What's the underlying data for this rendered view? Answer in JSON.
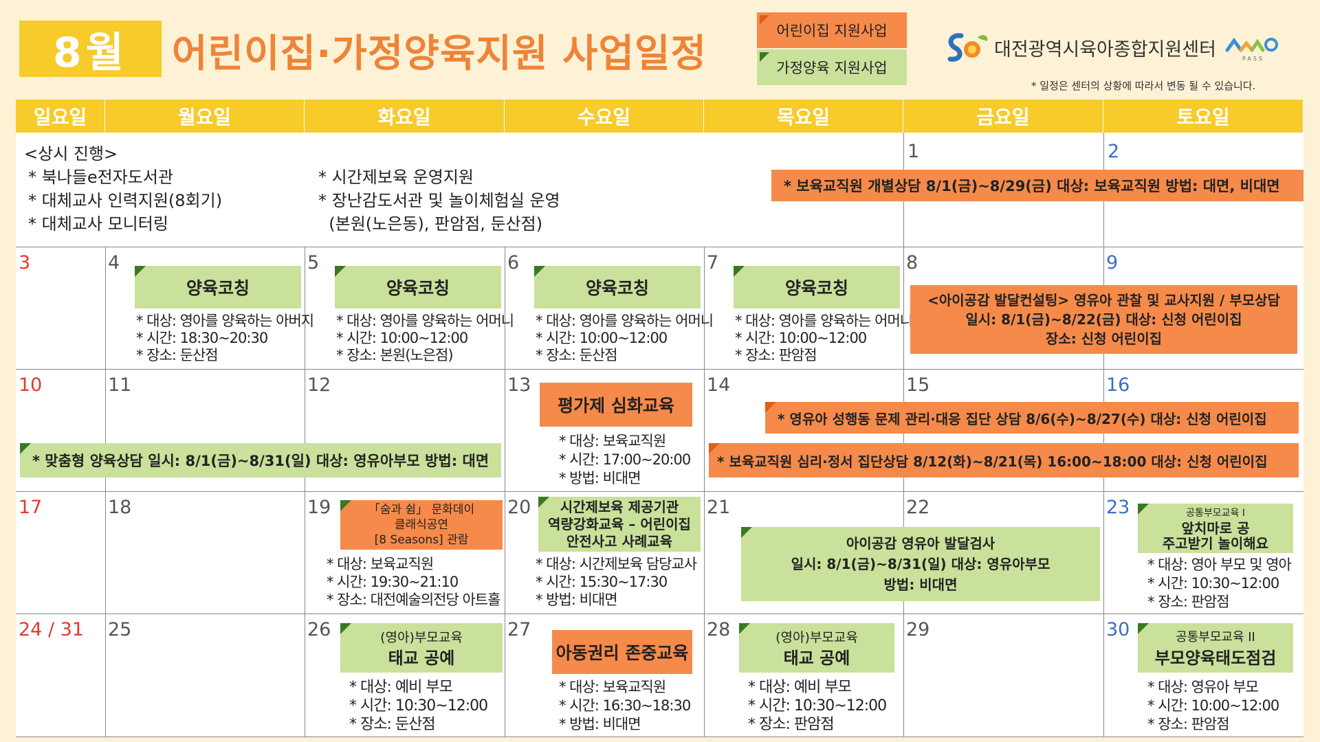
{
  "header": {
    "month": "8월",
    "title": "어린이집·가정양육지원 사업일정",
    "legend": {
      "daycare": "어린이집 지원사업",
      "home": "가정양육 지원사업"
    },
    "center_name": "대전광역시육아종합지원센터",
    "pass_label": "PASS",
    "note": "* 일정은 센터의 상황에 따라서 변동 될 수 있습니다."
  },
  "colors": {
    "accent_yellow": "#f6cb2a",
    "title_orange": "#ee8437",
    "daycare_orange": "#f58a4a",
    "home_green": "#c9e19b",
    "sunday_red": "#e33a2e",
    "saturday_blue": "#3a6fc4"
  },
  "weekdays": [
    "일요일",
    "월요일",
    "화요일",
    "수요일",
    "목요일",
    "금요일",
    "토요일"
  ],
  "always": {
    "heading": "<상시 진행>",
    "left": [
      "* 북나들e전자도서관",
      "* 대체교사 인력지원(8회기)",
      "* 대체교사 모니터링"
    ],
    "right": [
      "* 시간제보육 운영지원",
      "* 장난감도서관 및 놀이체험실 운영",
      "  (본원(노은동), 판암점, 둔산점)"
    ]
  },
  "days": {
    "d1": "1",
    "d2": "2",
    "d3": "3",
    "d4": "4",
    "d5": "5",
    "d6": "6",
    "d7": "7",
    "d8": "8",
    "d9": "9",
    "d10": "10",
    "d11": "11",
    "d12": "12",
    "d13": "13",
    "d14": "14",
    "d15": "15",
    "d16": "16",
    "d17": "17",
    "d18": "18",
    "d19": "19",
    "d20": "20",
    "d21": "21",
    "d22": "22",
    "d23": "23",
    "d24": "24 / 31",
    "d25": "25",
    "d26": "26",
    "d27": "27",
    "d28": "28",
    "d29": "29",
    "d30": "30"
  },
  "events": {
    "teacher_counsel": "*  보육교직원 개별상담   8/1(금)~8/29(금)   대상: 보육교직원   방법: 대면, 비대면",
    "coaching_title": "양육코칭",
    "coach4": [
      "* 대상: 영아를 양육하는 아버지",
      "* 시간: 18:30~20:30",
      "* 장소: 둔산점"
    ],
    "coach5": [
      "* 대상: 영아를 양육하는 어머니",
      "* 시간: 10:00~12:00",
      "* 장소: 본원(노은점)"
    ],
    "coach6": [
      "* 대상: 영아를 양육하는 어머니",
      "* 시간: 10:00~12:00",
      "* 장소: 둔산점"
    ],
    "coach7": [
      "* 대상: 영아를 양육하는 어머니",
      "* 시간: 10:00~12:00",
      "* 장소: 판암점"
    ],
    "consult_line1": "<아이공감 발달컨설팅> 영유아 관찰 및 교사지원 / 부모상담",
    "consult_line2": "일시: 8/1(금)~8/22(금)   대상: 신청 어린이집",
    "consult_line3": "장소: 신청 어린이집",
    "custom_counsel": "* 맞춤형 양육상담   일시: 8/1(금)~8/31(일)   대상: 영유아부모   방법: 대면",
    "eval_title": "평가제 심화교육",
    "eval_details": [
      "* 대상: 보육교직원",
      "* 시간: 17:00~20:00",
      "* 방법: 비대면"
    ],
    "group_counsel": "* 영유아 성행동 문제 관리·대응 집단 상담   8/6(수)~8/27(수)    대상: 신청 어린이집",
    "psych_counsel": "* 보육교직원 심리·정서 집단상담    8/12(화)~8/21(목)   16:00~18:00    대상: 신청 어린이집",
    "culture_line1": "「숨과 쉼」 문화데이",
    "culture_line2": "클래식공연",
    "culture_line3": "[8 Seasons] 관람",
    "culture_details": [
      "* 대상: 보육교직원",
      "* 시간: 19:30~21:10",
      "* 장소: 대전예술의전당 아트홀"
    ],
    "safety_line1": "시간제보육 제공기관",
    "safety_line2": "역량강화교육 – 어린이집",
    "safety_line3": "안전사고 사례교육",
    "safety_details": [
      "* 대상: 시간제보육 담당교사",
      "* 시간: 15:30~17:30",
      "* 방법: 비대면"
    ],
    "dev_line1": "아이공감 영유아 발달검사",
    "dev_line2": "일시: 8/1(금)~8/31(일)    대상: 영유아부모",
    "dev_line3": "방법: 비대면",
    "play_line1": "공통부모교육 I",
    "play_line2": "앞치마로 공",
    "play_line3": "주고받기 놀이해요",
    "play_details": [
      "* 대상: 영아 부모 및 영아",
      "* 시간: 10:30~12:00",
      "* 장소:  판암점"
    ],
    "prenatal_line1": "(영아)부모교육",
    "prenatal_line2": "태교 공예",
    "prenatal26": [
      "* 대상: 예비 부모",
      "* 시간: 10:30~12:00",
      "* 장소:  둔산점"
    ],
    "rights_title": "아동권리 존중교육",
    "rights_details": [
      "* 대상: 보육교직원",
      "* 시간: 16:30~18:30",
      "* 방법: 비대면"
    ],
    "prenatal28": [
      "* 대상: 예비 부모",
      "* 시간: 10:30~12:00",
      "* 장소:  판암점"
    ],
    "attitude_line1": "공통부모교육 II",
    "attitude_line2": "부모양육태도점검",
    "attitude_details": [
      "* 대상: 영유아 부모",
      "* 시간: 10:00~12:00",
      "* 장소:  판암점"
    ]
  }
}
